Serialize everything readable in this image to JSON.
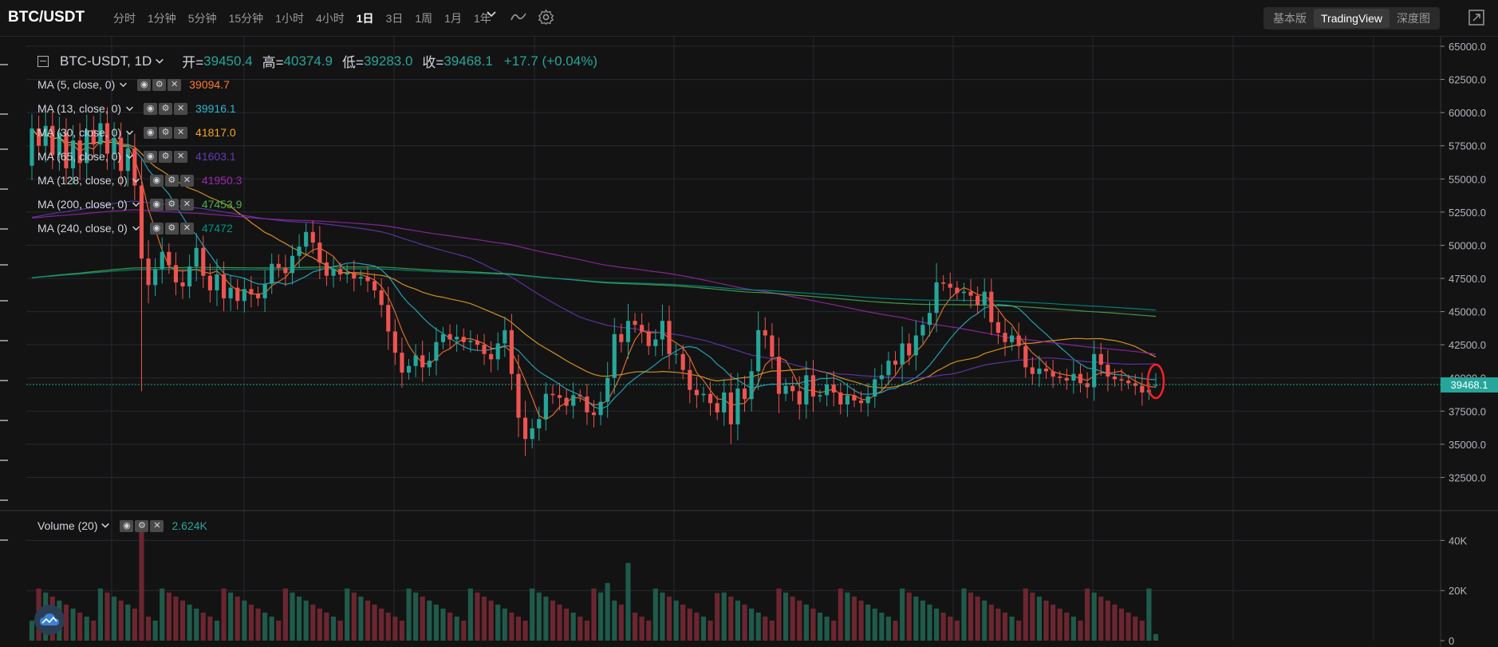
{
  "header": {
    "symbol": "BTC/USDT",
    "intervals": [
      "分时",
      "1分钟",
      "5分钟",
      "15分钟",
      "1小时",
      "4小时",
      "1日",
      "3日",
      "1周",
      "1月",
      "1年"
    ],
    "active_interval": "1日",
    "views": [
      "基本版",
      "TradingView",
      "深度图"
    ],
    "active_view": "TradingView"
  },
  "legend": {
    "title": "BTC-USDT, 1D",
    "open_label": "开=",
    "open": "39450.4",
    "high_label": "高=",
    "high": "40374.9",
    "low_label": "低=",
    "low": "39283.0",
    "close_label": "收=",
    "close": "39468.1",
    "change": "+17.7 (+0.04%)"
  },
  "indicators": [
    {
      "label": "MA (5, close, 0)",
      "value": "39094.7",
      "color": "#ff7b29"
    },
    {
      "label": "MA (13, close, 0)",
      "value": "39916.1",
      "color": "#26b8d0"
    },
    {
      "label": "MA (30, close, 0)",
      "value": "41817.0",
      "color": "#f5a623"
    },
    {
      "label": "MA (65, close, 0)",
      "value": "41603.1",
      "color": "#673ab7"
    },
    {
      "label": "MA (128, close, 0)",
      "value": "41950.3",
      "color": "#9c27b0"
    },
    {
      "label": "MA (200, close, 0)",
      "value": "47453.9",
      "color": "#4caf50"
    },
    {
      "label": "MA (240, close, 0)",
      "value": "47472",
      "color": "#009688"
    }
  ],
  "volume_indicator": {
    "label": "Volume (20)",
    "value": "2.624K"
  },
  "last_price_tag": "39468.1",
  "colors": {
    "up": "#26a69a",
    "down": "#ef5350",
    "up_vol": "#1f5a4a",
    "down_vol": "#6b2630",
    "grid": "#2a2e39",
    "marker": "#ff2020"
  },
  "chart_data": {
    "type": "candlestick",
    "price_axis": {
      "ticks": [
        "65000.0",
        "62500.0",
        "60000.0",
        "57500.0",
        "55000.0",
        "52500.0",
        "50000.0",
        "47500.0",
        "45000.0",
        "42500.0",
        "40000.0",
        "37500.0",
        "35000.0",
        "32500.0"
      ],
      "range": [
        30000,
        65000
      ]
    },
    "volume_axis": {
      "ticks": [
        "40K",
        "20K",
        "0"
      ],
      "range": [
        0,
        50000
      ]
    },
    "ohlc": [],
    "volume": []
  }
}
